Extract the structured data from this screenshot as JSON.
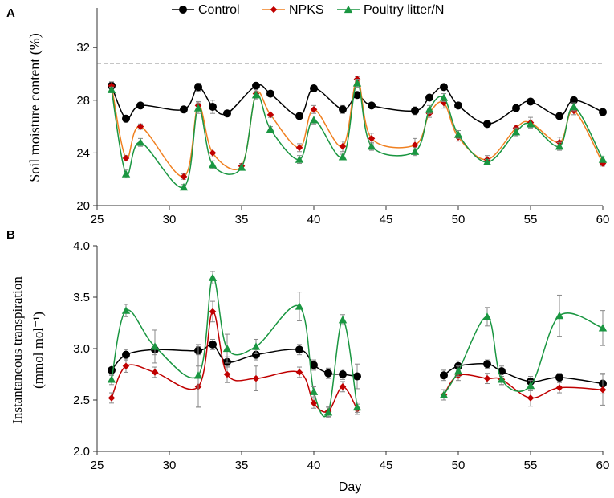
{
  "chart_data": [
    {
      "panel": "A",
      "type": "line",
      "title": "",
      "xlabel": "",
      "ylabel": "Soil moisture content (%)",
      "xlim": [
        25,
        60
      ],
      "ylim": [
        20,
        35
      ],
      "xticks": [
        25,
        30,
        35,
        40,
        45,
        50,
        55,
        60
      ],
      "yticks": [
        20,
        24,
        28,
        32
      ],
      "reference_line": 30.8,
      "legend": [
        "Control",
        "NPKS",
        "Poultry litter/N"
      ],
      "series": [
        {
          "name": "Control",
          "color": "#000000",
          "marker": "circle",
          "x": [
            26,
            27,
            28,
            31,
            32,
            33,
            34,
            36,
            37,
            39,
            40,
            42,
            43,
            44,
            47,
            48,
            49,
            50,
            52,
            54,
            55,
            57,
            58,
            60
          ],
          "y": [
            29.1,
            26.6,
            27.6,
            27.3,
            29.0,
            27.5,
            27.0,
            29.1,
            28.5,
            26.8,
            28.9,
            27.3,
            28.4,
            27.6,
            27.2,
            28.2,
            29.0,
            27.6,
            26.2,
            27.4,
            27.9,
            26.8,
            28.0,
            27.1
          ],
          "err": [
            0.2,
            0.2,
            0.1,
            0.1,
            0.3,
            0.5,
            0.1,
            0.2,
            0.2,
            0.2,
            0.2,
            0.3,
            0.2,
            0.1,
            0.3,
            0.2,
            0.2,
            0.1,
            0.1,
            0.2,
            0.1,
            0.2,
            0.2,
            0.1
          ]
        },
        {
          "name": "NPKS",
          "color": "#c00000",
          "line_color": "#f08020",
          "marker": "diamond",
          "x": [
            26,
            27,
            28,
            31,
            32,
            33,
            35,
            36,
            37,
            39,
            40,
            42,
            43,
            44,
            47,
            48,
            49,
            50,
            52,
            54,
            55,
            57,
            58,
            60
          ],
          "y": [
            29.1,
            23.6,
            26.0,
            22.2,
            27.6,
            24.0,
            23.0,
            28.5,
            26.9,
            24.4,
            27.3,
            24.5,
            29.6,
            25.1,
            24.6,
            27.0,
            27.8,
            25.2,
            23.5,
            25.9,
            26.3,
            24.8,
            27.2,
            23.2
          ],
          "err": [
            0.3,
            0.2,
            0.2,
            0.2,
            0.3,
            0.3,
            0.2,
            0.3,
            0.2,
            0.3,
            0.3,
            0.4,
            0.2,
            0.4,
            0.5,
            0.3,
            0.4,
            0.3,
            0.3,
            0.2,
            0.4,
            0.4,
            0.3,
            0.2
          ]
        },
        {
          "name": "Poultry litter/N",
          "color": "#1a9641",
          "marker": "triangle",
          "x": [
            26,
            27,
            28,
            31,
            32,
            33,
            35,
            36,
            37,
            39,
            40,
            42,
            43,
            44,
            47,
            48,
            49,
            50,
            52,
            54,
            55,
            57,
            58,
            60
          ],
          "y": [
            28.8,
            22.4,
            24.8,
            21.4,
            27.4,
            23.1,
            22.9,
            28.4,
            25.8,
            23.5,
            26.5,
            23.7,
            29.3,
            24.5,
            24.1,
            27.3,
            28.2,
            25.4,
            23.3,
            25.6,
            26.2,
            24.5,
            27.5,
            23.5
          ],
          "err": [
            0.2,
            0.3,
            0.3,
            0.2,
            0.4,
            0.3,
            0.2,
            0.3,
            0.2,
            0.3,
            0.3,
            0.2,
            0.3,
            0.3,
            0.3,
            0.3,
            0.3,
            0.3,
            0.2,
            0.3,
            0.3,
            0.3,
            0.3,
            0.2
          ]
        }
      ]
    },
    {
      "panel": "B",
      "type": "line",
      "title": "",
      "xlabel": "Day",
      "ylabel": "Instantaneous transpiration",
      "ylabel_units": "(mmol mol⁻¹)",
      "xlim": [
        25,
        60
      ],
      "ylim": [
        2.0,
        4.0
      ],
      "xticks": [
        25,
        30,
        35,
        40,
        45,
        50,
        55,
        60
      ],
      "yticks": [
        2.0,
        2.5,
        3.0,
        3.5,
        4.0
      ],
      "series": [
        {
          "name": "Control",
          "color": "#000000",
          "marker": "circle",
          "segments": [
            {
              "x": [
                26,
                27,
                29,
                32,
                33,
                34,
                36,
                39,
                40,
                41,
                42,
                43
              ],
              "y": [
                2.79,
                2.94,
                2.99,
                2.98,
                3.04,
                2.87,
                2.94,
                2.99,
                2.84,
                2.76,
                2.75,
                2.73
              ],
              "err": [
                0.05,
                0.05,
                0.05,
                0.04,
                0.05,
                0.05,
                0.05,
                0.05,
                0.05,
                0.05,
                0.05,
                0.12
              ]
            },
            {
              "x": [
                49,
                50,
                52,
                53,
                55,
                57,
                60
              ],
              "y": [
                2.74,
                2.83,
                2.85,
                2.78,
                2.68,
                2.72,
                2.66
              ],
              "err": [
                0.05,
                0.05,
                0.04,
                0.05,
                0.05,
                0.04,
                0.1
              ]
            }
          ]
        },
        {
          "name": "NPKS",
          "color": "#c00000",
          "marker": "diamond",
          "segments": [
            {
              "x": [
                26,
                27,
                29,
                32,
                33,
                34,
                36,
                39,
                40,
                41,
                42,
                43
              ],
              "y": [
                2.52,
                2.83,
                2.77,
                2.63,
                3.36,
                2.75,
                2.71,
                2.77,
                2.47,
                2.39,
                2.63,
                2.41
              ],
              "err": [
                0.05,
                0.06,
                0.05,
                0.2,
                0.1,
                0.08,
                0.12,
                0.05,
                0.05,
                0.05,
                0.05,
                0.05
              ]
            },
            {
              "x": [
                49,
                50,
                52,
                53,
                55,
                57,
                60
              ],
              "y": [
                2.55,
                2.74,
                2.71,
                2.7,
                2.52,
                2.62,
                2.6
              ],
              "err": [
                0.05,
                0.05,
                0.05,
                0.05,
                0.08,
                0.05,
                0.15
              ]
            }
          ]
        },
        {
          "name": "Poultry litter/N",
          "color": "#1a9641",
          "marker": "triangle",
          "segments": [
            {
              "x": [
                26,
                27,
                29,
                32,
                33,
                34,
                36,
                39,
                40,
                41,
                42,
                43
              ],
              "y": [
                2.7,
                3.37,
                3.02,
                2.74,
                3.69,
                3.0,
                3.02,
                3.41,
                2.58,
                2.38,
                3.28,
                2.43
              ],
              "err": [
                0.05,
                0.06,
                0.16,
                0.3,
                0.06,
                0.14,
                0.07,
                0.14,
                0.05,
                0.05,
                0.05,
                0.05
              ]
            },
            {
              "x": [
                49,
                50,
                52,
                53,
                55,
                57,
                60
              ],
              "y": [
                2.55,
                2.78,
                3.31,
                2.7,
                2.64,
                3.32,
                3.2
              ],
              "err": [
                0.05,
                0.05,
                0.09,
                0.05,
                0.05,
                0.2,
                0.17
              ]
            }
          ]
        }
      ]
    }
  ],
  "panel_labels": {
    "a": "A",
    "b": "B"
  }
}
